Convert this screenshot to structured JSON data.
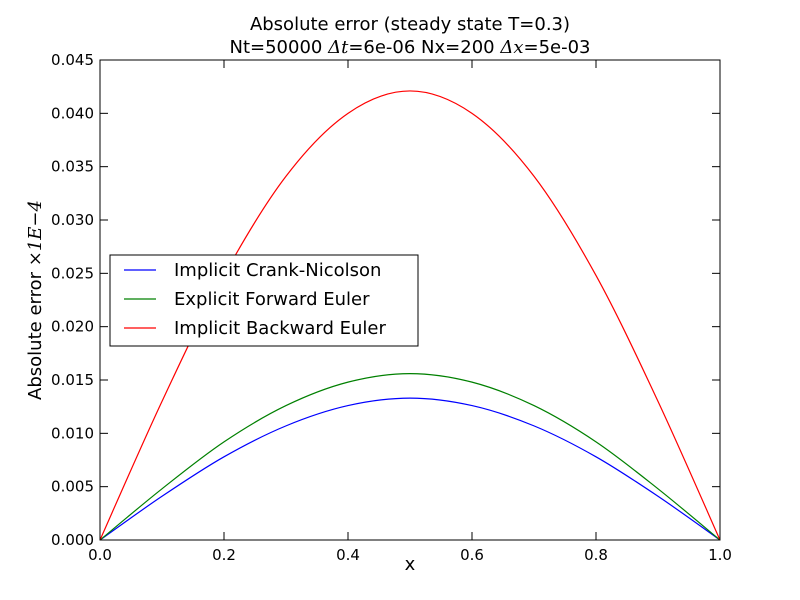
{
  "chart_data": {
    "type": "line",
    "title_line1": "Absolute error (steady state T=0.3)",
    "title_line2": {
      "nt": "Nt=50000 ",
      "dt_symbol": "Δt",
      "dt_value": "=6e-06 Nx=200 ",
      "dx_symbol": "Δx",
      "dx_value": "=5e-03"
    },
    "xlabel": "x",
    "ylabel_text": "Absolute error ",
    "ylabel_math": "×1E−4",
    "xlim": [
      0.0,
      1.0
    ],
    "ylim": [
      0.0,
      0.045
    ],
    "x_ticks": [
      0.0,
      0.2,
      0.4,
      0.6,
      0.8,
      1.0
    ],
    "x_tick_labels": [
      "0.0",
      "0.2",
      "0.4",
      "0.6",
      "0.8",
      "1.0"
    ],
    "y_ticks": [
      0.0,
      0.005,
      0.01,
      0.015,
      0.02,
      0.025,
      0.03,
      0.035,
      0.04,
      0.045
    ],
    "y_tick_labels": [
      "0.000",
      "0.005",
      "0.010",
      "0.015",
      "0.020",
      "0.025",
      "0.030",
      "0.035",
      "0.040",
      "0.045"
    ],
    "grid": false,
    "legend_position": "center-left",
    "series": [
      {
        "name": "Implicit Crank-Nicolson",
        "color": "#0000ff",
        "x": [
          0.0,
          0.1,
          0.2,
          0.3,
          0.4,
          0.5,
          0.6,
          0.7,
          0.8,
          0.9,
          1.0
        ],
        "values": [
          0.0,
          0.0041,
          0.0078,
          0.0107,
          0.0126,
          0.0133,
          0.0126,
          0.0107,
          0.0078,
          0.0041,
          0.0
        ]
      },
      {
        "name": "Explicit Forward Euler",
        "color": "#008000",
        "x": [
          0.0,
          0.1,
          0.2,
          0.3,
          0.4,
          0.5,
          0.6,
          0.7,
          0.8,
          0.9,
          1.0
        ],
        "values": [
          0.0,
          0.0048,
          0.0092,
          0.0126,
          0.0148,
          0.0156,
          0.0148,
          0.0126,
          0.0092,
          0.0048,
          0.0
        ]
      },
      {
        "name": "Implicit Backward Euler",
        "color": "#ff0000",
        "x": [
          0.0,
          0.1,
          0.2,
          0.3,
          0.4,
          0.5,
          0.6,
          0.7,
          0.8,
          0.9,
          1.0
        ],
        "values": [
          0.0,
          0.013,
          0.0248,
          0.0341,
          0.04,
          0.0421,
          0.04,
          0.0341,
          0.0248,
          0.013,
          0.0
        ]
      }
    ]
  }
}
